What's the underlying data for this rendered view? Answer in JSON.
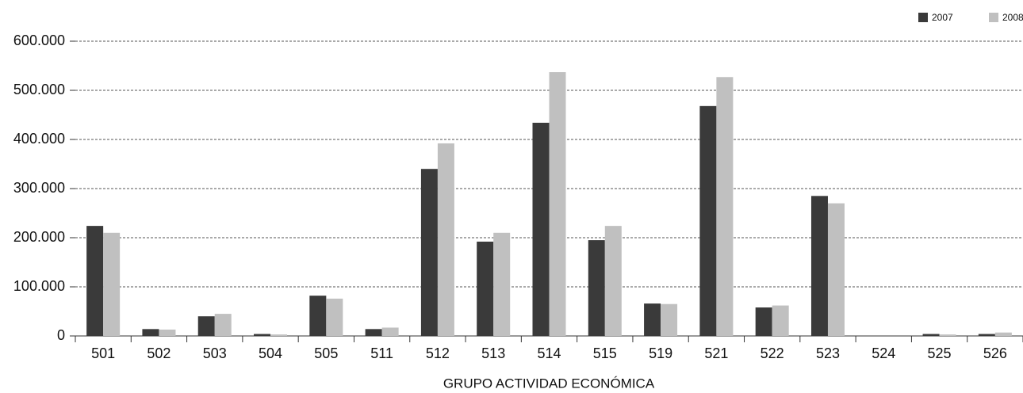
{
  "chart_data": {
    "type": "bar",
    "x_label": "GRUPO ACTIVIDAD ECONÓMICA",
    "categories": [
      "501",
      "502",
      "503",
      "504",
      "505",
      "511",
      "512",
      "513",
      "514",
      "515",
      "519",
      "521",
      "522",
      "523",
      "524",
      "525",
      "526"
    ],
    "series": [
      {
        "name": "2007",
        "color": "#3a3a3a",
        "values": [
          224000,
          14000,
          40000,
          4000,
          82000,
          14000,
          340000,
          192000,
          434000,
          195000,
          66000,
          468000,
          58000,
          285000,
          0,
          4000,
          4000
        ]
      },
      {
        "name": "2008",
        "color": "#c0c0c0",
        "values": [
          210000,
          13000,
          45000,
          3000,
          76000,
          17000,
          392000,
          210000,
          537000,
          224000,
          65000,
          527000,
          62000,
          270000,
          0,
          3000,
          7000
        ]
      }
    ],
    "ylim": [
      0,
      600000
    ],
    "yticks": [
      0,
      {
        "value": 100000,
        "label": "100.000"
      },
      {
        "value": 200000,
        "label": "200.000"
      },
      {
        "value": 300000,
        "label": "300.000"
      },
      {
        "value": 400000,
        "label": "400.000"
      },
      {
        "value": 500000,
        "label": "500.000"
      },
      {
        "value": 600000,
        "label": "600.000"
      }
    ],
    "grid": true,
    "legend": "top-right"
  }
}
